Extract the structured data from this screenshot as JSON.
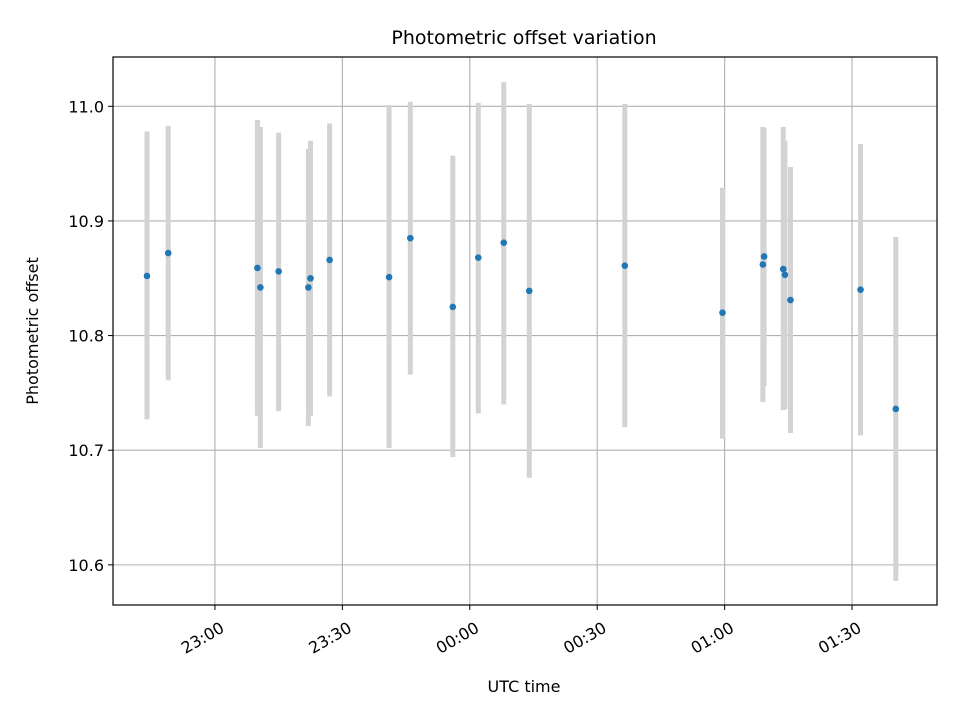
{
  "chart_data": {
    "type": "scatter",
    "title": "Photometric offset variation",
    "xlabel": "UTC time",
    "ylabel": "Photometric offset",
    "x_ticks": [
      "23:00",
      "23:30",
      "00:00",
      "00:30",
      "01:00",
      "01:30"
    ],
    "y_ticks": [
      "10.6",
      "10.7",
      "10.8",
      "10.9",
      "11.0"
    ],
    "xlim": [
      "22:36",
      "01:50"
    ],
    "ylim": [
      10.565,
      11.043
    ],
    "grid": true,
    "colors": {
      "point": "#1f77b4",
      "errorbar": "#d3d3d3",
      "grid": "#b0b0b0"
    },
    "points": [
      {
        "x": "22:44",
        "y": 10.852,
        "err_low": 10.727,
        "err_high": 10.978
      },
      {
        "x": "22:49",
        "y": 10.872,
        "err_low": 10.761,
        "err_high": 10.983
      },
      {
        "x": "23:10",
        "y": 10.859,
        "err_low": 10.73,
        "err_high": 10.988
      },
      {
        "x": "23:10.7",
        "y": 10.842,
        "err_low": 10.702,
        "err_high": 10.982
      },
      {
        "x": "23:15",
        "y": 10.856,
        "err_low": 10.734,
        "err_high": 10.977
      },
      {
        "x": "23:22",
        "y": 10.842,
        "err_low": 10.721,
        "err_high": 10.963
      },
      {
        "x": "23:22.5",
        "y": 10.85,
        "err_low": 10.73,
        "err_high": 10.97
      },
      {
        "x": "23:27",
        "y": 10.866,
        "err_low": 10.747,
        "err_high": 10.985
      },
      {
        "x": "23:41",
        "y": 10.851,
        "err_low": 10.702,
        "err_high": 11.001
      },
      {
        "x": "23:46",
        "y": 10.885,
        "err_low": 10.766,
        "err_high": 11.004
      },
      {
        "x": "23:56",
        "y": 10.825,
        "err_low": 10.694,
        "err_high": 10.957
      },
      {
        "x": "00:02",
        "y": 10.868,
        "err_low": 10.732,
        "err_high": 11.003
      },
      {
        "x": "00:08",
        "y": 10.881,
        "err_low": 10.74,
        "err_high": 11.021
      },
      {
        "x": "00:14",
        "y": 10.839,
        "err_low": 10.676,
        "err_high": 11.002
      },
      {
        "x": "00:36.5",
        "y": 10.861,
        "err_low": 10.72,
        "err_high": 11.002
      },
      {
        "x": "00:59.5",
        "y": 10.82,
        "err_low": 10.71,
        "err_high": 10.929
      },
      {
        "x": "01:09",
        "y": 10.862,
        "err_low": 10.742,
        "err_high": 10.982
      },
      {
        "x": "01:09.3",
        "y": 10.869,
        "err_low": 10.756,
        "err_high": 10.981
      },
      {
        "x": "01:13.8",
        "y": 10.858,
        "err_low": 10.735,
        "err_high": 10.982
      },
      {
        "x": "01:14.2",
        "y": 10.853,
        "err_low": 10.736,
        "err_high": 10.97
      },
      {
        "x": "01:15.5",
        "y": 10.831,
        "err_low": 10.715,
        "err_high": 10.947
      },
      {
        "x": "01:32",
        "y": 10.84,
        "err_low": 10.713,
        "err_high": 10.967
      },
      {
        "x": "01:40.3",
        "y": 10.736,
        "err_low": 10.586,
        "err_high": 10.886
      }
    ]
  }
}
